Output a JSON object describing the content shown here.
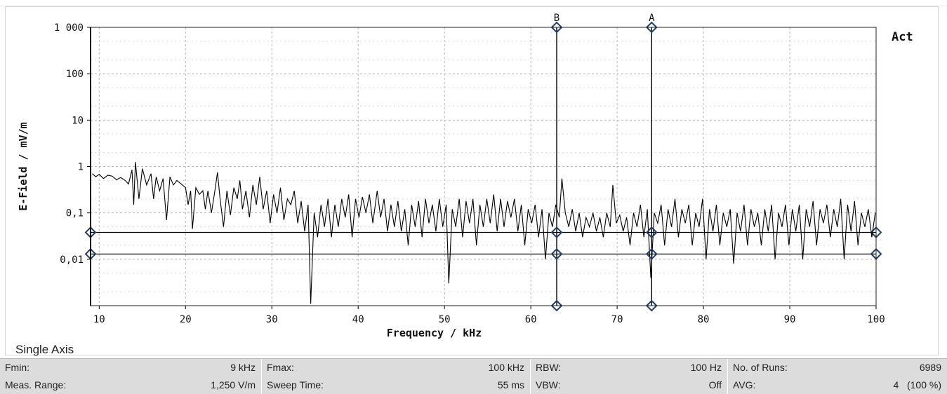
{
  "chart_data": {
    "type": "line",
    "xlabel": "Frequency / kHz",
    "ylabel": "E-Field / mV/m",
    "x_range": [
      9,
      100
    ],
    "y_range": [
      0.001,
      1000
    ],
    "y_scale": "log",
    "x_ticks": [
      10,
      20,
      30,
      40,
      50,
      60,
      70,
      80,
      90,
      100
    ],
    "y_ticks": [
      {
        "value": 1000,
        "label": "1 000"
      },
      {
        "value": 100,
        "label": "100"
      },
      {
        "value": 10,
        "label": "10"
      },
      {
        "value": 1,
        "label": "1"
      },
      {
        "value": 0.1,
        "label": "0,1"
      },
      {
        "value": 0.01,
        "label": "0,01"
      }
    ],
    "grid": true,
    "trace_label": "Act",
    "markers": [
      {
        "name": "B",
        "x": 63
      },
      {
        "name": "A",
        "x": 74
      }
    ],
    "threshold_lines": [
      0.038,
      0.013
    ],
    "series": [
      {
        "name": "Act",
        "color": "#000000",
        "points": [
          [
            9.2,
            0.7
          ],
          [
            9.6,
            0.6
          ],
          [
            10.0,
            0.68
          ],
          [
            10.5,
            0.55
          ],
          [
            11.0,
            0.65
          ],
          [
            11.5,
            0.62
          ],
          [
            12.0,
            0.52
          ],
          [
            12.5,
            0.58
          ],
          [
            13.0,
            0.5
          ],
          [
            13.4,
            0.42
          ],
          [
            13.8,
            0.85
          ],
          [
            14.0,
            0.15
          ],
          [
            14.2,
            1.25
          ],
          [
            14.6,
            0.2
          ],
          [
            15.0,
            0.9
          ],
          [
            15.5,
            0.4
          ],
          [
            16.0,
            0.7
          ],
          [
            16.3,
            0.2
          ],
          [
            16.6,
            0.6
          ],
          [
            17.0,
            0.3
          ],
          [
            17.4,
            0.55
          ],
          [
            17.8,
            0.07
          ],
          [
            18.2,
            0.6
          ],
          [
            18.6,
            0.4
          ],
          [
            19.0,
            0.5
          ],
          [
            19.5,
            0.42
          ],
          [
            20.0,
            0.35
          ],
          [
            20.3,
            0.15
          ],
          [
            20.6,
            0.3
          ],
          [
            20.8,
            0.045
          ],
          [
            21.2,
            0.35
          ],
          [
            21.6,
            0.25
          ],
          [
            22.0,
            0.3
          ],
          [
            22.3,
            0.12
          ],
          [
            22.6,
            0.3
          ],
          [
            23.0,
            0.1
          ],
          [
            23.4,
            0.3
          ],
          [
            23.7,
            0.75
          ],
          [
            24.0,
            0.2
          ],
          [
            24.4,
            0.05
          ],
          [
            24.8,
            0.3
          ],
          [
            25.2,
            0.09
          ],
          [
            25.6,
            0.35
          ],
          [
            26.0,
            0.2
          ],
          [
            26.3,
            0.5
          ],
          [
            26.6,
            0.12
          ],
          [
            27.0,
            0.3
          ],
          [
            27.4,
            0.08
          ],
          [
            27.8,
            0.4
          ],
          [
            28.2,
            0.15
          ],
          [
            28.6,
            0.6
          ],
          [
            29.0,
            0.12
          ],
          [
            29.4,
            0.3
          ],
          [
            29.8,
            0.06
          ],
          [
            30.2,
            0.25
          ],
          [
            30.6,
            0.1
          ],
          [
            31.0,
            0.35
          ],
          [
            31.4,
            0.07
          ],
          [
            31.8,
            0.2
          ],
          [
            32.2,
            0.15
          ],
          [
            32.6,
            0.3
          ],
          [
            33.0,
            0.06
          ],
          [
            33.4,
            0.18
          ],
          [
            33.8,
            0.04
          ],
          [
            34.2,
            0.15
          ],
          [
            34.5,
            0.0011
          ],
          [
            34.9,
            0.1
          ],
          [
            35.3,
            0.03
          ],
          [
            35.7,
            0.15
          ],
          [
            36.1,
            0.05
          ],
          [
            36.5,
            0.2
          ],
          [
            36.9,
            0.03
          ],
          [
            37.3,
            0.15
          ],
          [
            37.7,
            0.05
          ],
          [
            38.1,
            0.2
          ],
          [
            38.5,
            0.08
          ],
          [
            38.9,
            0.25
          ],
          [
            39.3,
            0.03
          ],
          [
            39.7,
            0.2
          ],
          [
            40.1,
            0.08
          ],
          [
            40.5,
            0.22
          ],
          [
            40.9,
            0.1
          ],
          [
            41.3,
            0.25
          ],
          [
            41.7,
            0.06
          ],
          [
            42.2,
            0.3
          ],
          [
            42.6,
            0.08
          ],
          [
            43.0,
            0.2
          ],
          [
            43.4,
            0.04
          ],
          [
            43.8,
            0.15
          ],
          [
            44.2,
            0.05
          ],
          [
            44.6,
            0.18
          ],
          [
            45.0,
            0.04
          ],
          [
            45.4,
            0.12
          ],
          [
            45.8,
            0.02
          ],
          [
            46.2,
            0.15
          ],
          [
            46.6,
            0.05
          ],
          [
            47.0,
            0.18
          ],
          [
            47.4,
            0.03
          ],
          [
            47.8,
            0.2
          ],
          [
            48.2,
            0.06
          ],
          [
            48.6,
            0.15
          ],
          [
            49.0,
            0.04
          ],
          [
            49.4,
            0.2
          ],
          [
            49.8,
            0.05
          ],
          [
            50.2,
            0.15
          ],
          [
            50.5,
            0.003
          ],
          [
            50.9,
            0.12
          ],
          [
            51.3,
            0.05
          ],
          [
            51.7,
            0.2
          ],
          [
            52.1,
            0.03
          ],
          [
            52.5,
            0.18
          ],
          [
            52.9,
            0.06
          ],
          [
            53.3,
            0.2
          ],
          [
            53.7,
            0.02
          ],
          [
            54.1,
            0.15
          ],
          [
            54.5,
            0.05
          ],
          [
            54.9,
            0.2
          ],
          [
            55.3,
            0.06
          ],
          [
            55.7,
            0.25
          ],
          [
            56.1,
            0.04
          ],
          [
            56.5,
            0.2
          ],
          [
            56.9,
            0.05
          ],
          [
            57.3,
            0.18
          ],
          [
            57.7,
            0.08
          ],
          [
            58.1,
            0.2
          ],
          [
            58.5,
            0.04
          ],
          [
            58.9,
            0.15
          ],
          [
            59.3,
            0.02
          ],
          [
            59.7,
            0.12
          ],
          [
            60.1,
            0.06
          ],
          [
            60.5,
            0.15
          ],
          [
            60.9,
            0.03
          ],
          [
            61.3,
            0.12
          ],
          [
            61.7,
            0.01
          ],
          [
            62.1,
            0.1
          ],
          [
            62.5,
            0.05
          ],
          [
            62.9,
            0.15
          ],
          [
            63.3,
            0.08
          ],
          [
            63.6,
            0.55
          ],
          [
            64.0,
            0.1
          ],
          [
            64.4,
            0.05
          ],
          [
            64.8,
            0.12
          ],
          [
            65.2,
            0.04
          ],
          [
            65.6,
            0.1
          ],
          [
            66.0,
            0.03
          ],
          [
            66.4,
            0.08
          ],
          [
            66.8,
            0.05
          ],
          [
            67.2,
            0.1
          ],
          [
            67.6,
            0.04
          ],
          [
            68.0,
            0.08
          ],
          [
            68.4,
            0.03
          ],
          [
            68.8,
            0.1
          ],
          [
            69.2,
            0.05
          ],
          [
            69.5,
            0.4
          ],
          [
            69.9,
            0.06
          ],
          [
            70.3,
            0.09
          ],
          [
            70.7,
            0.04
          ],
          [
            71.1,
            0.08
          ],
          [
            71.5,
            0.02
          ],
          [
            71.9,
            0.1
          ],
          [
            72.3,
            0.05
          ],
          [
            72.7,
            0.15
          ],
          [
            73.1,
            0.03
          ],
          [
            73.5,
            0.12
          ],
          [
            73.9,
            0.004
          ],
          [
            74.3,
            0.1
          ],
          [
            74.7,
            0.06
          ],
          [
            75.1,
            0.15
          ],
          [
            75.5,
            0.02
          ],
          [
            75.9,
            0.12
          ],
          [
            76.3,
            0.05
          ],
          [
            76.7,
            0.2
          ],
          [
            77.1,
            0.03
          ],
          [
            77.5,
            0.12
          ],
          [
            77.9,
            0.06
          ],
          [
            78.3,
            0.15
          ],
          [
            78.7,
            0.02
          ],
          [
            79.1,
            0.1
          ],
          [
            79.5,
            0.05
          ],
          [
            79.9,
            0.2
          ],
          [
            80.3,
            0.01
          ],
          [
            80.7,
            0.12
          ],
          [
            81.1,
            0.04
          ],
          [
            81.5,
            0.15
          ],
          [
            81.9,
            0.02
          ],
          [
            82.3,
            0.1
          ],
          [
            82.7,
            0.05
          ],
          [
            83.1,
            0.12
          ],
          [
            83.5,
            0.008
          ],
          [
            83.9,
            0.1
          ],
          [
            84.3,
            0.04
          ],
          [
            84.7,
            0.15
          ],
          [
            85.1,
            0.02
          ],
          [
            85.5,
            0.12
          ],
          [
            85.9,
            0.05
          ],
          [
            86.3,
            0.1
          ],
          [
            86.7,
            0.02
          ],
          [
            87.1,
            0.12
          ],
          [
            87.5,
            0.04
          ],
          [
            87.9,
            0.15
          ],
          [
            88.3,
            0.01
          ],
          [
            88.7,
            0.1
          ],
          [
            89.1,
            0.05
          ],
          [
            89.5,
            0.15
          ],
          [
            89.9,
            0.02
          ],
          [
            90.3,
            0.12
          ],
          [
            90.7,
            0.04
          ],
          [
            91.1,
            0.15
          ],
          [
            91.5,
            0.01
          ],
          [
            91.9,
            0.12
          ],
          [
            92.3,
            0.05
          ],
          [
            92.7,
            0.18
          ],
          [
            93.1,
            0.02
          ],
          [
            93.5,
            0.12
          ],
          [
            93.9,
            0.06
          ],
          [
            94.3,
            0.15
          ],
          [
            94.7,
            0.03
          ],
          [
            95.1,
            0.12
          ],
          [
            95.5,
            0.05
          ],
          [
            95.9,
            0.2
          ],
          [
            96.3,
            0.01
          ],
          [
            96.7,
            0.15
          ],
          [
            97.1,
            0.04
          ],
          [
            97.5,
            0.18
          ],
          [
            97.9,
            0.02
          ],
          [
            98.3,
            0.1
          ],
          [
            98.7,
            0.05
          ],
          [
            99.1,
            0.12
          ],
          [
            99.5,
            0.03
          ],
          [
            99.9,
            0.1
          ]
        ]
      }
    ]
  },
  "panel": {
    "mode_label": "Single Axis"
  },
  "status_bar": {
    "fmin_label": "Fmin:",
    "fmin_value": "9 kHz",
    "meas_range_label": "Meas. Range:",
    "meas_range_value": "1,250 V/m",
    "fmax_label": "Fmax:",
    "fmax_value": "100 kHz",
    "sweep_time_label": "Sweep Time:",
    "sweep_time_value": "55 ms",
    "rbw_label": "RBW:",
    "rbw_value": "100 Hz",
    "vbw_label": "VBW:",
    "vbw_value": "Off",
    "runs_label": "No. of Runs:",
    "runs_value": "6989",
    "avg_label": "AVG:",
    "avg_value": "4   (100 %)"
  },
  "colors": {
    "trace": "#000000",
    "marker_handle": "#1f3f6b",
    "grid": "#b5b5b5",
    "status_bg": "#dcdcdc"
  }
}
